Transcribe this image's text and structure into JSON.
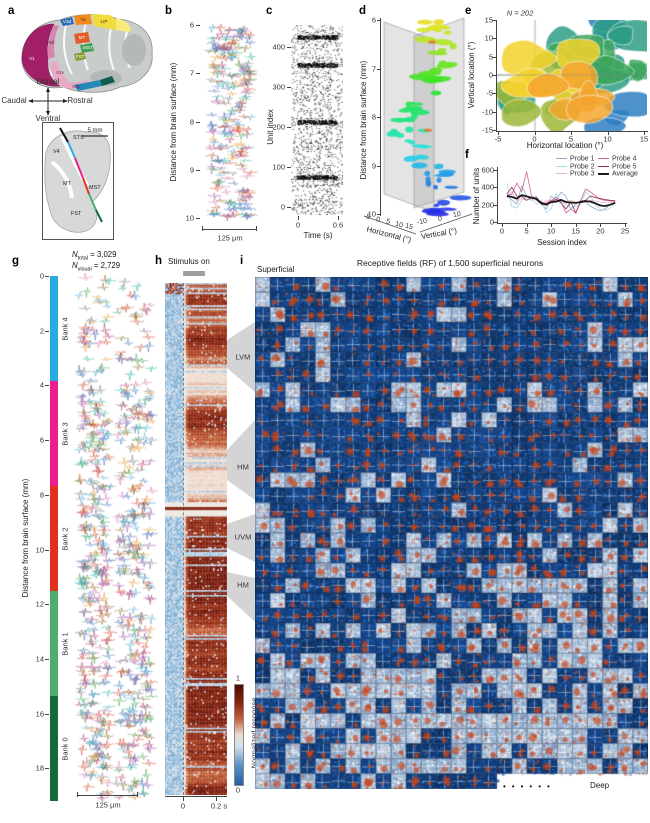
{
  "labels": {
    "a": "a",
    "b": "b",
    "c": "c",
    "d": "d",
    "e": "e",
    "f": "f",
    "g": "g",
    "h": "h",
    "i": "i"
  },
  "panel_a": {
    "compass": {
      "up": "Dorsal",
      "down": "Ventral",
      "left": "Caudal",
      "right": "Rostral"
    },
    "scale_bar": "5 mm",
    "regions": [
      "V1",
      "V2d",
      "V3d",
      "7a",
      "LIP",
      "MT",
      "MST",
      "FST",
      "V2v",
      "V3v"
    ],
    "inset_areas": [
      "STS",
      "V4",
      "MT",
      "MST",
      "FST"
    ]
  },
  "panel_b": {
    "ylabel": "Distance from brain surface (mm)",
    "yticks": [
      "6",
      "7",
      "8",
      "9",
      "10"
    ],
    "scale_bar": "125 μm"
  },
  "panel_c": {
    "ylabel": "Unit index",
    "yticks": [
      "0",
      "100",
      "200",
      "300",
      "400"
    ],
    "xlabel": "Time (s)",
    "xticks": [
      "0",
      "0.6"
    ]
  },
  "panel_d": {
    "ylabel": "Distance from brain surface (mm)",
    "yticks": [
      "6",
      "7",
      "8",
      "9",
      "10"
    ],
    "h_label": "Horizontal (°)",
    "h_ticks": [
      "-5",
      "0",
      "5",
      "10",
      "15"
    ],
    "v_label": "Vertical (°)",
    "v_ticks": [
      "-10",
      "0",
      "10"
    ]
  },
  "panel_e": {
    "count_label": "N = 202",
    "ylabel": "Vertical location (°)",
    "yticks": [
      "15",
      "10",
      "5",
      "0",
      "-5",
      "-10",
      "-15"
    ],
    "xlabel": "Horizontal location (°)",
    "xticks": [
      "-5",
      "0",
      "5",
      "10",
      "15"
    ],
    "blob_colors": [
      "#2e9e85",
      "#3fa65a",
      "#9cb838",
      "#f2d22e",
      "#f5a62f",
      "#2f7fc2"
    ]
  },
  "panel_f": {
    "ylabel": "Number of units",
    "yticks": [
      "0",
      "200",
      "400",
      "600"
    ],
    "xlabel": "Session index",
    "xticks": [
      "0",
      "5",
      "10",
      "15",
      "20",
      "25"
    ],
    "legend": [
      {
        "label": "Probe 1",
        "color": "#8fa9cb"
      },
      {
        "label": "Probe 2",
        "color": "#a9d6e8"
      },
      {
        "label": "Probe 3",
        "color": "#e7b3c8"
      },
      {
        "label": "Probe 4",
        "color": "#d55f97"
      },
      {
        "label": "Probe 5",
        "color": "#96325a"
      },
      {
        "label": "Average",
        "color": "#1a1a1a"
      }
    ],
    "chart_data": {
      "type": "line",
      "xlabel": "Session index",
      "ylabel": "Number of units",
      "xlim": [
        0,
        25
      ],
      "ylim": [
        0,
        600
      ],
      "sessions": [
        1,
        2,
        3,
        4,
        5,
        6,
        7,
        8,
        9,
        10,
        11,
        12,
        13,
        14,
        15,
        16,
        17,
        18,
        19,
        20,
        21,
        22,
        23
      ],
      "series": [
        {
          "name": "Probe 1",
          "values": [
            300,
            255,
            205,
            415,
            300,
            250,
            295,
            205,
            150,
            300,
            250,
            345,
            300,
            150,
            205,
            250,
            230,
            180,
            150,
            130,
            155,
            200,
            230
          ]
        },
        {
          "name": "Probe 2",
          "values": [
            450,
            180,
            160,
            250,
            295,
            280,
            205,
            250,
            105,
            150,
            330,
            240,
            200,
            155,
            180,
            200,
            345,
            300,
            200,
            150,
            135,
            160,
            220
          ]
        },
        {
          "name": "Probe 3",
          "values": [
            285,
            345,
            240,
            270,
            250,
            300,
            280,
            200,
            250,
            230,
            250,
            260,
            240,
            250,
            230,
            220,
            230,
            250,
            240,
            230,
            220,
            225,
            235
          ]
        },
        {
          "name": "Probe 4",
          "values": [
            310,
            320,
            450,
            350,
            580,
            300,
            250,
            205,
            220,
            250,
            285,
            230,
            105,
            150,
            105,
            250,
            380,
            345,
            300,
            260,
            250,
            245,
            240
          ]
        },
        {
          "name": "Probe 5",
          "values": [
            320,
            400,
            300,
            295,
            250,
            280,
            260,
            230,
            210,
            240,
            260,
            220,
            150,
            230,
            105,
            240,
            250,
            300,
            280,
            270,
            260,
            250,
            245
          ]
        },
        {
          "name": "Average",
          "values": [
            300,
            290,
            270,
            310,
            295,
            280,
            270,
            215,
            200,
            230,
            235,
            255,
            230,
            225,
            220,
            230,
            240,
            235,
            215,
            190,
            185,
            200,
            220
          ]
        }
      ]
    }
  },
  "panel_g": {
    "n_total_sym": "N",
    "n_total_sub": "total",
    "n_total_val": "= 3,029",
    "n_visual_sym": "N",
    "n_visual_sub": "visual",
    "n_visual_val": "= 2,729",
    "ylabel": "Distance from brain surface (mm)",
    "yticks": [
      "0",
      "2",
      "4",
      "6",
      "8",
      "10",
      "12",
      "14",
      "16",
      "18"
    ],
    "banks": [
      {
        "label": "Bank 4",
        "color": "#29abe2"
      },
      {
        "label": "Bank 3",
        "color": "#ec1e8c"
      },
      {
        "label": "Bank 2",
        "color": "#e0301e"
      },
      {
        "label": "Bank 1",
        "color": "#4daf6e"
      },
      {
        "label": "Bank 0",
        "color": "#17693a"
      }
    ],
    "scale_bar": "125 μm"
  },
  "panel_h": {
    "title": "Stimulus on",
    "xticks": [
      "0",
      "0.2 s"
    ],
    "colorbar": {
      "max": "1",
      "min": "0",
      "label": "Normalized response"
    }
  },
  "meridians": [
    "LVM",
    "HM",
    "UVM",
    "HM"
  ],
  "panel_i": {
    "title": "Receptive fields (RF) of 1,500 superficial neurons",
    "top_label": "Superficial",
    "bottom_label": "Deep",
    "dots": "••••••"
  }
}
